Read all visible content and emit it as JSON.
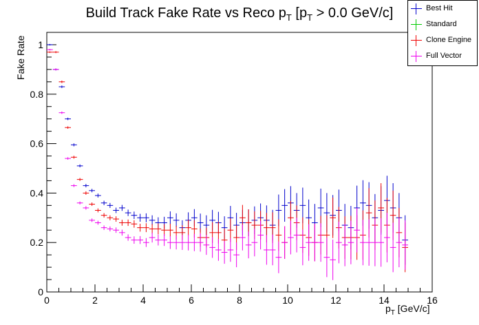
{
  "title_main": "Build Track Fake Rate vs Reco p",
  "title_sub1": "T",
  "title_mid": " [p",
  "title_sub2": "T",
  "title_end": " > 0.0 GeV/c]",
  "chart_data": {
    "type": "scatter",
    "title": "Build Track Fake Rate vs Reco pT [pT > 0.0 GeV/c]",
    "ylabel": "Fake Rate",
    "xlabel_main": "p",
    "xlabel_sub": "T",
    "xlabel_unit": " [GeV/c]",
    "xlim": [
      0,
      16
    ],
    "ylim": [
      0,
      1.05
    ],
    "x_ticks": [
      "0",
      "2",
      "4",
      "6",
      "8",
      "10",
      "12",
      "14",
      "16"
    ],
    "y_ticks": [
      "0",
      "0.2",
      "0.4",
      "0.6",
      "0.8",
      "1"
    ],
    "grid": false,
    "legend_position": "top-right",
    "bin_width": 0.25,
    "series": [
      {
        "name": "Best Hit",
        "color": "#0000cc",
        "x": [
          0.125,
          0.375,
          0.625,
          0.875,
          1.125,
          1.375,
          1.625,
          1.875,
          2.125,
          2.375,
          2.625,
          2.875,
          3.125,
          3.375,
          3.625,
          3.875,
          4.125,
          4.375,
          4.625,
          4.875,
          5.125,
          5.375,
          5.625,
          5.875,
          6.125,
          6.375,
          6.625,
          6.875,
          7.125,
          7.375,
          7.625,
          7.875,
          8.125,
          8.375,
          8.625,
          8.875,
          9.125,
          9.375,
          9.625,
          9.875,
          10.125,
          10.375,
          10.625,
          10.875,
          11.125,
          11.375,
          11.625,
          11.875,
          12.125,
          12.375,
          12.625,
          12.875,
          13.125,
          13.375,
          13.625,
          13.875,
          14.125,
          14.375,
          14.625,
          14.875
        ],
        "y": [
          1.0,
          0.9,
          0.83,
          0.7,
          0.595,
          0.51,
          0.43,
          0.41,
          0.39,
          0.36,
          0.35,
          0.33,
          0.34,
          0.32,
          0.31,
          0.3,
          0.3,
          0.29,
          0.28,
          0.28,
          0.3,
          0.29,
          0.26,
          0.29,
          0.3,
          0.28,
          0.27,
          0.29,
          0.28,
          0.26,
          0.3,
          0.27,
          0.28,
          0.28,
          0.29,
          0.3,
          0.29,
          0.27,
          0.33,
          0.35,
          0.36,
          0.33,
          0.35,
          0.3,
          0.28,
          0.34,
          0.32,
          0.31,
          0.33,
          0.27,
          0.26,
          0.34,
          0.36,
          0.35,
          0.3,
          0.33,
          0.37,
          0.34,
          0.3,
          0.21
        ],
        "err": [
          0.003,
          0.004,
          0.005,
          0.005,
          0.006,
          0.006,
          0.007,
          0.007,
          0.008,
          0.009,
          0.01,
          0.011,
          0.012,
          0.013,
          0.015,
          0.016,
          0.018,
          0.02,
          0.022,
          0.024,
          0.026,
          0.028,
          0.03,
          0.032,
          0.035,
          0.037,
          0.04,
          0.042,
          0.044,
          0.046,
          0.048,
          0.05,
          0.052,
          0.054,
          0.056,
          0.058,
          0.06,
          0.062,
          0.064,
          0.066,
          0.068,
          0.07,
          0.072,
          0.074,
          0.076,
          0.078,
          0.08,
          0.082,
          0.084,
          0.086,
          0.088,
          0.09,
          0.092,
          0.094,
          0.096,
          0.098,
          0.1,
          0.1,
          0.1,
          0.1
        ]
      },
      {
        "name": "Standard",
        "color": "#00cc00",
        "x": [],
        "y": [],
        "err": []
      },
      {
        "name": "Clone Engine",
        "color": "#ee0000",
        "x": [
          0.125,
          0.375,
          0.625,
          0.875,
          1.125,
          1.375,
          1.625,
          1.875,
          2.125,
          2.375,
          2.625,
          2.875,
          3.125,
          3.375,
          3.625,
          3.875,
          4.125,
          4.375,
          4.625,
          4.875,
          5.125,
          5.375,
          5.625,
          5.875,
          6.125,
          6.375,
          6.625,
          6.875,
          7.125,
          7.375,
          7.625,
          7.875,
          8.125,
          8.375,
          8.625,
          8.875,
          9.125,
          9.375,
          9.625,
          9.875,
          10.125,
          10.375,
          10.625,
          10.875,
          11.125,
          11.375,
          11.625,
          11.875,
          12.125,
          12.375,
          12.625,
          12.875,
          13.125,
          13.375,
          13.625,
          13.875,
          14.125,
          14.375,
          14.625,
          14.875
        ],
        "y": [
          0.97,
          0.97,
          0.85,
          0.665,
          0.545,
          0.455,
          0.4,
          0.355,
          0.33,
          0.31,
          0.3,
          0.295,
          0.28,
          0.28,
          0.275,
          0.26,
          0.26,
          0.255,
          0.255,
          0.25,
          0.25,
          0.24,
          0.24,
          0.26,
          0.255,
          0.22,
          0.22,
          0.24,
          0.24,
          0.21,
          0.25,
          0.22,
          0.3,
          0.28,
          0.27,
          0.27,
          0.26,
          0.26,
          0.23,
          0.2,
          0.3,
          0.28,
          0.23,
          0.22,
          0.2,
          0.23,
          0.23,
          0.3,
          0.26,
          0.22,
          0.22,
          0.22,
          0.23,
          0.32,
          0.27,
          0.34,
          0.27,
          0.31,
          0.24,
          0.18
        ],
        "err": [
          0.003,
          0.004,
          0.005,
          0.005,
          0.006,
          0.006,
          0.007,
          0.007,
          0.008,
          0.009,
          0.01,
          0.011,
          0.012,
          0.013,
          0.015,
          0.016,
          0.018,
          0.02,
          0.022,
          0.024,
          0.026,
          0.028,
          0.03,
          0.032,
          0.035,
          0.037,
          0.04,
          0.042,
          0.044,
          0.046,
          0.048,
          0.05,
          0.052,
          0.054,
          0.056,
          0.058,
          0.06,
          0.062,
          0.064,
          0.066,
          0.068,
          0.07,
          0.072,
          0.074,
          0.076,
          0.078,
          0.08,
          0.082,
          0.084,
          0.086,
          0.088,
          0.09,
          0.1,
          0.1,
          0.1,
          0.1,
          0.11,
          0.1,
          0.1,
          0.1
        ]
      },
      {
        "name": "Full Vector",
        "color": "#ee00ee",
        "x": [
          0.125,
          0.375,
          0.625,
          0.875,
          1.125,
          1.375,
          1.625,
          1.875,
          2.125,
          2.375,
          2.625,
          2.875,
          3.125,
          3.375,
          3.625,
          3.875,
          4.125,
          4.375,
          4.625,
          4.875,
          5.125,
          5.375,
          5.625,
          5.875,
          6.125,
          6.375,
          6.625,
          6.875,
          7.125,
          7.375,
          7.625,
          7.875,
          8.125,
          8.375,
          8.625,
          8.875,
          9.125,
          9.375,
          9.625,
          9.875,
          10.125,
          10.375,
          10.625,
          10.875,
          11.125,
          11.375,
          11.625,
          11.875,
          12.125,
          12.375,
          12.625,
          12.875,
          13.125,
          13.375,
          13.625,
          13.875,
          14.125,
          14.375,
          14.625,
          14.875
        ],
        "y": [
          0.98,
          0.9,
          0.725,
          0.54,
          0.43,
          0.36,
          0.34,
          0.29,
          0.28,
          0.26,
          0.255,
          0.25,
          0.24,
          0.22,
          0.21,
          0.21,
          0.2,
          0.22,
          0.21,
          0.21,
          0.2,
          0.2,
          0.2,
          0.2,
          0.2,
          0.2,
          0.19,
          0.18,
          0.17,
          0.16,
          0.17,
          0.15,
          0.22,
          0.19,
          0.2,
          0.23,
          0.17,
          0.17,
          0.14,
          0.2,
          0.22,
          0.23,
          0.18,
          0.2,
          0.2,
          0.2,
          0.14,
          0.13,
          0.2,
          0.19,
          0.2,
          0.25,
          0.2,
          0.2,
          0.2,
          0.2,
          0.22,
          0.18,
          0.2,
          0.19
        ],
        "err": [
          0.003,
          0.004,
          0.005,
          0.005,
          0.006,
          0.006,
          0.007,
          0.007,
          0.008,
          0.009,
          0.01,
          0.011,
          0.012,
          0.013,
          0.015,
          0.016,
          0.018,
          0.02,
          0.022,
          0.024,
          0.026,
          0.028,
          0.03,
          0.032,
          0.035,
          0.037,
          0.04,
          0.042,
          0.044,
          0.046,
          0.048,
          0.05,
          0.052,
          0.054,
          0.056,
          0.058,
          0.06,
          0.062,
          0.064,
          0.066,
          0.068,
          0.07,
          0.072,
          0.074,
          0.076,
          0.078,
          0.08,
          0.082,
          0.084,
          0.086,
          0.088,
          0.09,
          0.092,
          0.094,
          0.096,
          0.098,
          0.1,
          0.1,
          0.1,
          0.1
        ]
      }
    ]
  }
}
